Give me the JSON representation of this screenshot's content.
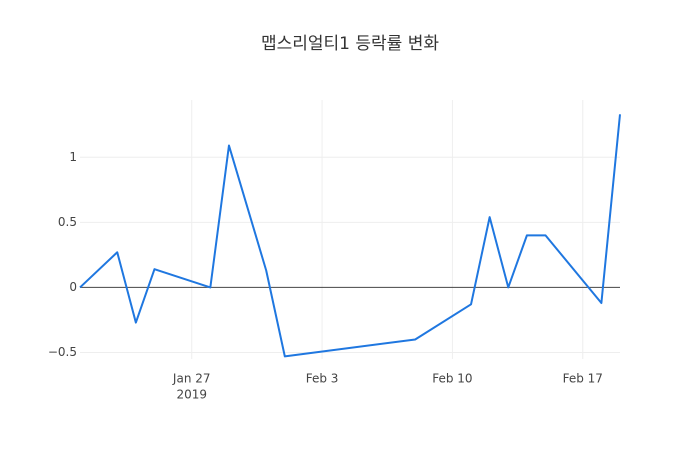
{
  "chart_data": {
    "type": "line",
    "title": "맵스리얼티1 등락률 변화",
    "x": [
      "2019-01-21",
      "2019-01-23",
      "2019-01-24",
      "2019-01-25",
      "2019-01-28",
      "2019-01-29",
      "2019-01-31",
      "2019-02-01",
      "2019-02-08",
      "2019-02-11",
      "2019-02-12",
      "2019-02-13",
      "2019-02-14",
      "2019-02-15",
      "2019-02-18",
      "2019-02-19"
    ],
    "series": [
      {
        "color": "#1f77e0",
        "values": [
          0,
          0.27,
          -0.27,
          0.14,
          0,
          1.09,
          0.13,
          -0.53,
          -0.4,
          -0.13,
          0.54,
          0,
          0.4,
          0.4,
          -0.12,
          1.33
        ]
      }
    ],
    "xlim": [
      "2019-01-21",
      "2019-02-19"
    ],
    "xticks": [
      {
        "value": "2019-01-27",
        "label": "Jan 27",
        "sublabel": "2019"
      },
      {
        "value": "2019-02-03",
        "label": "Feb 3"
      },
      {
        "value": "2019-02-10",
        "label": "Feb 10"
      },
      {
        "value": "2019-02-17",
        "label": "Feb 17"
      }
    ],
    "ylim": [
      -0.55,
      1.44
    ],
    "yticks": [
      {
        "value": -0.5,
        "label": "−0.5"
      },
      0,
      0.5,
      1
    ],
    "grid": true,
    "zeroline": true
  }
}
